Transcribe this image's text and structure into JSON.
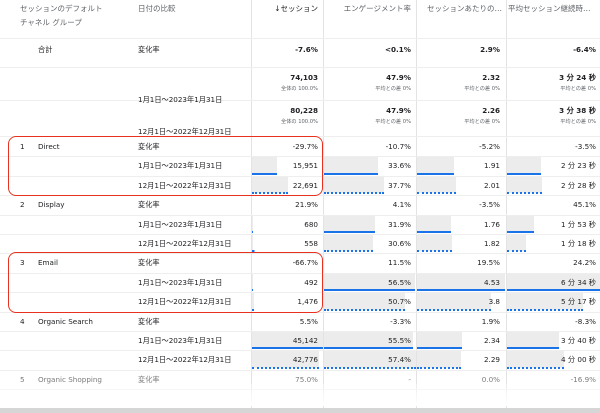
{
  "header": {
    "channel_line1": "セッションのデフォルト",
    "channel_line2": "チャネル グループ",
    "date_compare": "日付の比較",
    "sessions": "↓セッション",
    "engagement": "エンゲージメント率",
    "per_session": "セッションあたりの…",
    "avg_duration": "平均セッション継続時…"
  },
  "total": {
    "label": "合計",
    "change_label": "変化率",
    "change": [
      "-7.6%",
      "<0.1%",
      "2.9%",
      "-6.4%"
    ],
    "periods": [
      {
        "date": "1月1日～2023年1月31日",
        "values": [
          "74,103",
          "47.9%",
          "2.32",
          "3 分 24 秒"
        ],
        "subs": [
          "全体の 100.0%",
          "平均との差 0%",
          "平均との差 0%",
          "平均との差 0%"
        ]
      },
      {
        "date": "12月1日～2022年12月31日",
        "values": [
          "80,228",
          "47.9%",
          "2.26",
          "3 分 38 秒"
        ],
        "subs": [
          "全体の 100.0%",
          "平均との差 0%",
          "平均との差 0%",
          "平均との差 0%"
        ]
      }
    ]
  },
  "rows": [
    {
      "rank": "1",
      "channel": "Direct",
      "change_label": "変化率",
      "change": [
        "-29.7%",
        "-10.7%",
        "-5.2%",
        "-3.5%"
      ],
      "periods": [
        {
          "date": "1月1日～2023年1月31日",
          "values": [
            "15,951",
            "33.6%",
            "1.91",
            "2 分 23 秒"
          ]
        },
        {
          "date": "12月1日～2022年12月31日",
          "values": [
            "22,691",
            "37.7%",
            "2.01",
            "2 分 28 秒"
          ]
        }
      ]
    },
    {
      "rank": "2",
      "channel": "Display",
      "change_label": "変化率",
      "change": [
        "21.9%",
        "4.1%",
        "-3.5%",
        "45.1%"
      ],
      "periods": [
        {
          "date": "1月1日～2023年1月31日",
          "values": [
            "680",
            "31.9%",
            "1.76",
            "1 分 53 秒"
          ]
        },
        {
          "date": "12月1日～2022年12月31日",
          "values": [
            "558",
            "30.6%",
            "1.82",
            "1 分 18 秒"
          ]
        }
      ]
    },
    {
      "rank": "3",
      "channel": "Email",
      "change_label": "変化率",
      "change": [
        "-66.7%",
        "11.5%",
        "19.5%",
        "24.2%"
      ],
      "periods": [
        {
          "date": "1月1日～2023年1月31日",
          "values": [
            "492",
            "56.5%",
            "4.53",
            "6 分 34 秒"
          ]
        },
        {
          "date": "12月1日～2022年12月31日",
          "values": [
            "1,476",
            "50.7%",
            "3.8",
            "5 分 17 秒"
          ]
        }
      ]
    },
    {
      "rank": "4",
      "channel": "Organic Search",
      "change_label": "変化率",
      "change": [
        "5.5%",
        "-3.3%",
        "1.9%",
        "-8.3%"
      ],
      "periods": [
        {
          "date": "1月1日～2023年1月31日",
          "values": [
            "45,142",
            "55.5%",
            "2.34",
            "3 分 40 秒"
          ]
        },
        {
          "date": "12月1日～2022年12月31日",
          "values": [
            "42,776",
            "57.4%",
            "2.29",
            "4 分 00 秒"
          ]
        }
      ]
    },
    {
      "rank": "5",
      "channel": "Organic Shopping",
      "change_label": "変化率",
      "change": [
        "75.0%",
        "-",
        "0.0%",
        "-16.9%"
      ],
      "periods": []
    }
  ],
  "highlighted_channels": [
    "Direct",
    "Email"
  ],
  "colors": {
    "accent": "#1a73e8",
    "highlight_box": "#e8321f",
    "bar": "#ececec"
  }
}
